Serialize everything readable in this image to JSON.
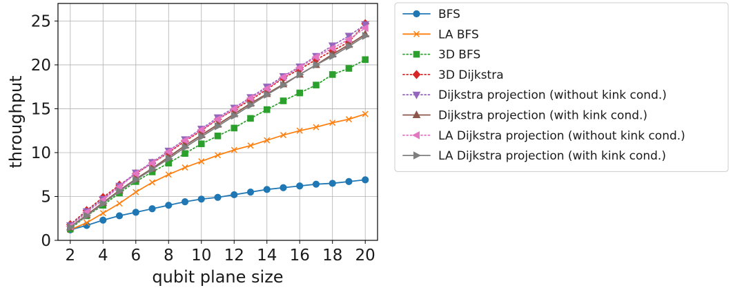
{
  "chart_data": {
    "type": "line",
    "title": "",
    "xlabel": "qubit plane size",
    "ylabel": "throughput",
    "xlim": [
      1.25,
      20.75
    ],
    "ylim": [
      0,
      27
    ],
    "xticks": [
      2,
      4,
      6,
      8,
      10,
      12,
      14,
      16,
      18,
      20
    ],
    "yticks": [
      0,
      5,
      10,
      15,
      20,
      25
    ],
    "grid": true,
    "legend_position": "outside-right-top",
    "x": [
      2,
      3,
      4,
      5,
      6,
      7,
      8,
      9,
      10,
      11,
      12,
      13,
      14,
      15,
      16,
      17,
      18,
      19,
      20
    ],
    "series": [
      {
        "name": "BFS",
        "color": "#1f77b4",
        "linestyle": "solid",
        "marker": "circle",
        "values": [
          1.2,
          1.7,
          2.3,
          2.8,
          3.2,
          3.6,
          4.0,
          4.4,
          4.7,
          4.9,
          5.2,
          5.5,
          5.8,
          6.0,
          6.2,
          6.4,
          6.5,
          6.7,
          6.9
        ]
      },
      {
        "name": "LA BFS",
        "color": "#ff7f0e",
        "linestyle": "solid",
        "marker": "x",
        "values": [
          1.2,
          2.0,
          3.1,
          4.2,
          5.5,
          6.6,
          7.5,
          8.3,
          9.0,
          9.7,
          10.3,
          10.8,
          11.4,
          12.0,
          12.5,
          12.9,
          13.4,
          13.8,
          14.4
        ]
      },
      {
        "name": "3D BFS",
        "color": "#2ca02c",
        "linestyle": "dotted",
        "marker": "square",
        "values": [
          1.3,
          2.8,
          4.0,
          5.4,
          6.7,
          7.8,
          8.8,
          9.9,
          11.0,
          11.9,
          12.8,
          13.9,
          14.9,
          15.9,
          16.8,
          17.7,
          18.9,
          19.6,
          20.6
        ]
      },
      {
        "name": "3D Dijkstra",
        "color": "#d62728",
        "linestyle": "dotted",
        "marker": "diamond",
        "values": [
          1.8,
          3.4,
          4.9,
          6.3,
          7.6,
          8.8,
          10.0,
          11.3,
          12.5,
          13.8,
          14.9,
          16.0,
          17.2,
          18.5,
          19.5,
          20.6,
          21.6,
          22.6,
          24.7
        ]
      },
      {
        "name": "Dijkstra projection (without kink cond.)",
        "color": "#9467bd",
        "linestyle": "dotted",
        "marker": "triangle-down",
        "values": [
          1.7,
          3.3,
          4.7,
          6.2,
          7.7,
          8.9,
          10.2,
          11.5,
          12.7,
          14.0,
          15.1,
          16.3,
          17.5,
          18.7,
          19.8,
          21.0,
          22.2,
          23.3,
          24.6
        ]
      },
      {
        "name": "Dijkstra projection (with kink cond.)",
        "color": "#8c564b",
        "linestyle": "solid",
        "marker": "triangle-up",
        "values": [
          1.5,
          2.9,
          4.3,
          5.7,
          7.0,
          8.2,
          9.5,
          10.8,
          12.0,
          13.2,
          14.4,
          15.6,
          16.7,
          17.8,
          18.9,
          20.0,
          21.2,
          22.3,
          23.5
        ]
      },
      {
        "name": "LA Dijkstra projection (without kink cond.)",
        "color": "#e377c2",
        "linestyle": "dotted",
        "marker": "triangle-left",
        "values": [
          1.6,
          3.2,
          4.6,
          6.1,
          7.6,
          8.8,
          10.1,
          11.4,
          12.6,
          13.8,
          15.0,
          16.2,
          17.3,
          18.6,
          19.7,
          20.9,
          21.9,
          22.9,
          24.2
        ]
      },
      {
        "name": "LA Dijkstra projection (with kink cond.)",
        "color": "#7f7f7f",
        "linestyle": "solid",
        "marker": "triangle-right",
        "values": [
          1.5,
          2.8,
          4.2,
          5.6,
          6.9,
          8.1,
          9.3,
          10.6,
          11.8,
          13.0,
          14.2,
          15.4,
          16.6,
          17.7,
          18.9,
          20.0,
          21.0,
          22.1,
          23.3
        ]
      }
    ]
  }
}
